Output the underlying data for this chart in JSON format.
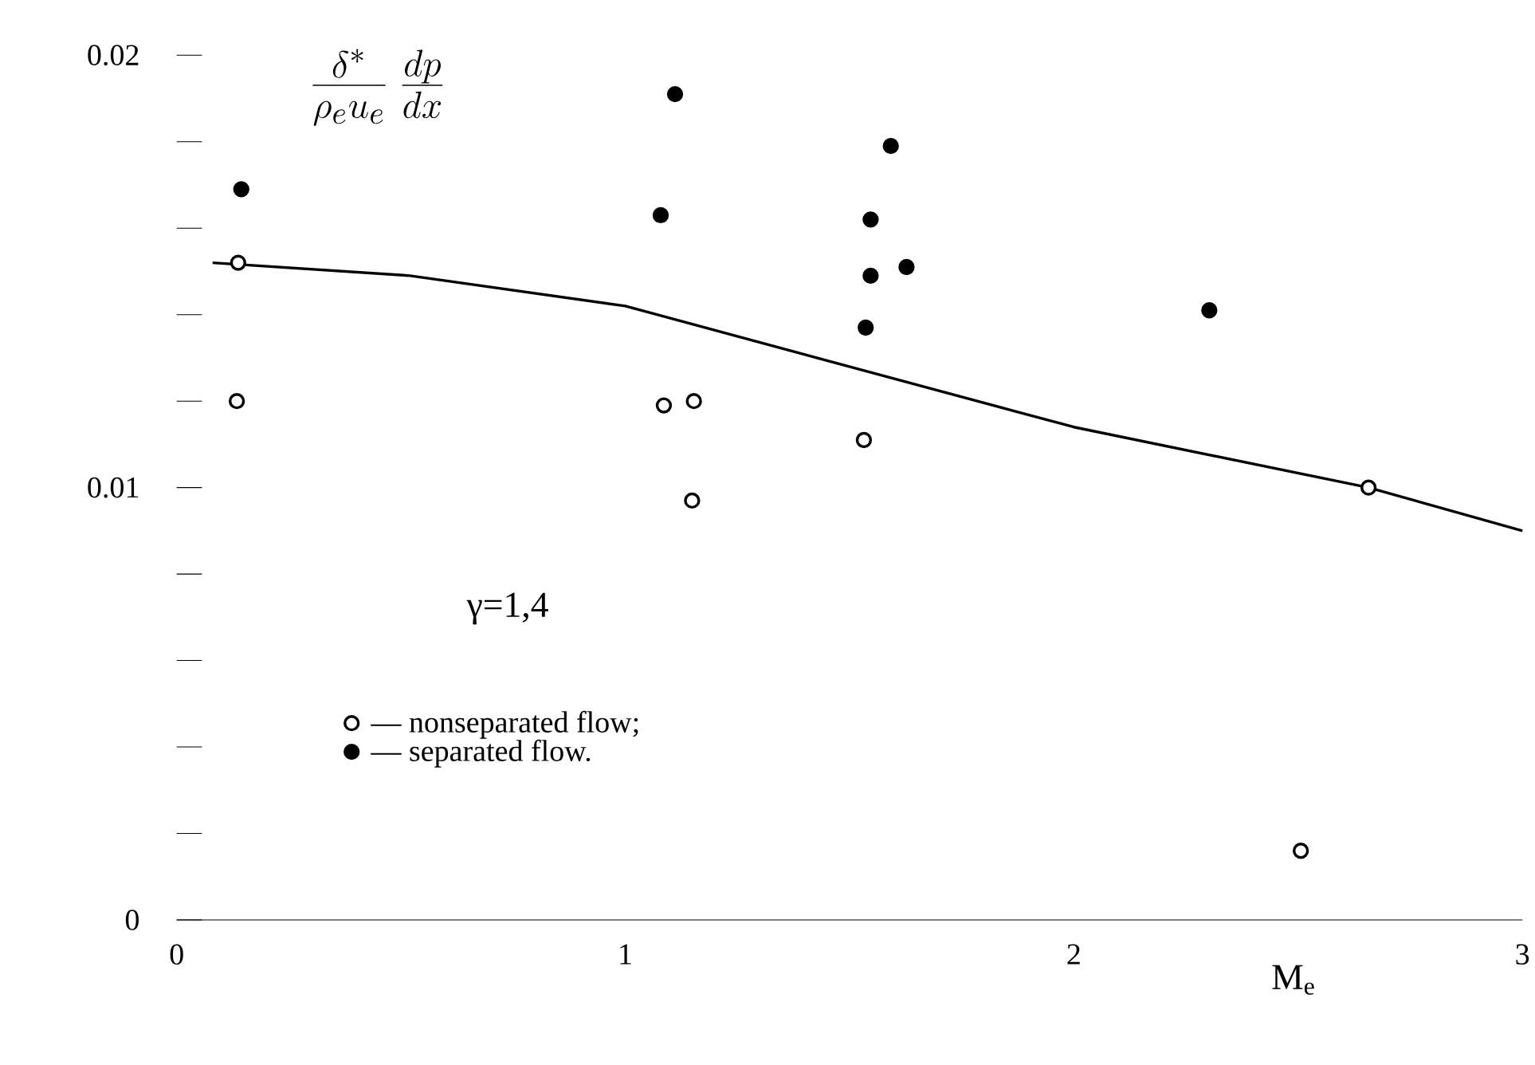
{
  "chart_data": {
    "type": "scatter",
    "ylabel": "\\frac{\\delta^*}{\\rho_e u_e}\\,\\frac{dp}{dx}",
    "xlabel": "M$_{e}$",
    "annotations": [
      "γ=1,4"
    ],
    "xlim": [
      0,
      3
    ],
    "xticks": [
      0,
      1,
      2,
      3
    ],
    "ylim": [
      0,
      0.02
    ],
    "yticks": [
      0,
      {
        "value": 0.002,
        "label": null
      },
      {
        "value": 0.004,
        "label": null
      },
      {
        "value": 0.006,
        "label": null
      },
      {
        "value": 0.008,
        "label": null
      },
      0.01,
      {
        "value": 0.012,
        "label": null
      },
      {
        "value": 0.014,
        "label": null
      },
      {
        "value": 0.016,
        "label": null
      },
      {
        "value": 0.018,
        "label": null
      },
      0.02
    ],
    "legend": "left",
    "series": [
      {
        "name": "— nonseparated flow;",
        "color": "#ffffff",
        "marker": "circle",
        "x": [
          0.137,
          0.134,
          1.086,
          1.153,
          1.149,
          1.532,
          2.657,
          2.506
        ],
        "values": [
          0.0152,
          0.012,
          0.0119,
          0.012,
          0.0097,
          0.0111,
          0.01,
          0.0016
        ]
      },
      {
        "name": "— separated flow.",
        "color": "#000000",
        "marker": "circle",
        "x": [
          0.144,
          1.111,
          1.079,
          1.592,
          1.547,
          1.547,
          1.627,
          1.536,
          2.302
        ],
        "values": [
          0.0169,
          0.0191,
          0.0163,
          0.0179,
          0.0162,
          0.0149,
          0.0151,
          0.0137,
          0.0141
        ]
      },
      {
        "type": "line",
        "color": "#000000",
        "line_style": "solid",
        "marker": "none",
        "x": [
          0.08,
          0.52,
          1.0,
          1.534,
          2.0,
          2.657,
          3.0
        ],
        "values": [
          0.0152,
          0.0149,
          0.0142,
          0.0127,
          0.0114,
          0.01,
          0.009
        ]
      }
    ]
  }
}
